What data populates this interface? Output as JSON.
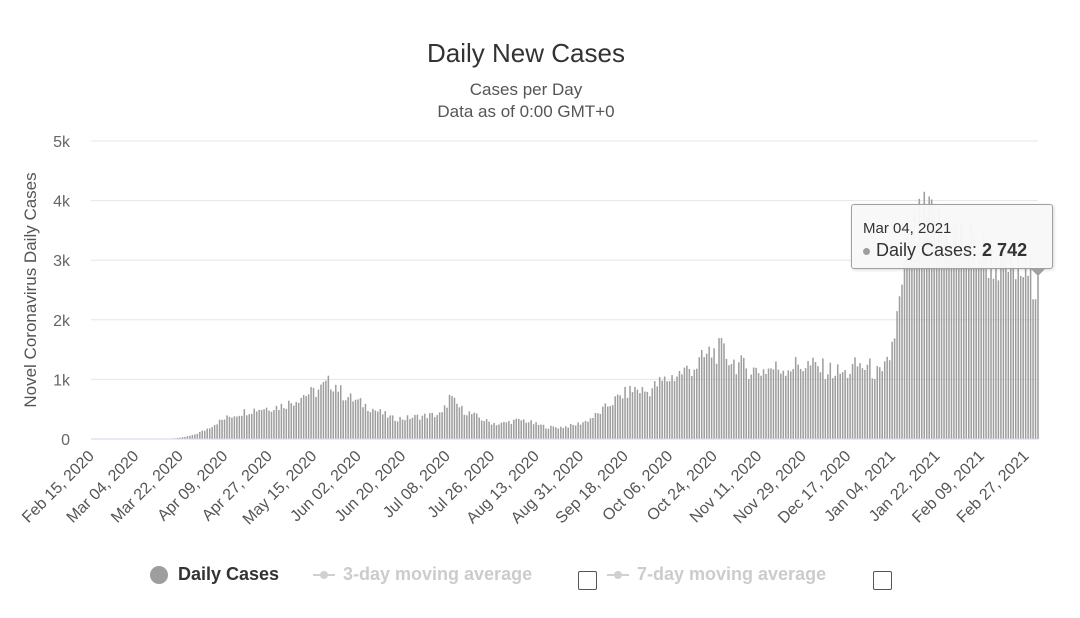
{
  "chart_data": {
    "type": "bar",
    "title": "Daily New Cases",
    "subtitle_lines": [
      "Cases per Day",
      "Data as of 0:00 GMT+0"
    ],
    "ylabel": "Novel Coronavirus Daily Cases",
    "xlabel": "",
    "ylim": [
      0,
      5000
    ],
    "y_ticks": [
      0,
      1000,
      2000,
      3000,
      4000,
      5000
    ],
    "y_tick_labels": [
      "0",
      "1k",
      "2k",
      "3k",
      "4k",
      "5k"
    ],
    "x_range": [
      "2020-02-15",
      "2021-03-04"
    ],
    "x_tick_labels": [
      "Feb 15, 2020",
      "Mar 04, 2020",
      "Mar 22, 2020",
      "Apr 09, 2020",
      "Apr 27, 2020",
      "May 15, 2020",
      "Jun 02, 2020",
      "Jun 20, 2020",
      "Jul 08, 2020",
      "Jul 26, 2020",
      "Aug 13, 2020",
      "Aug 31, 2020",
      "Sep 18, 2020",
      "Oct 06, 2020",
      "Oct 24, 2020",
      "Nov 11, 2020",
      "Nov 29, 2020",
      "Dec 17, 2020",
      "Jan 04, 2021",
      "Jan 22, 2021",
      "Feb 09, 2021",
      "Feb 27, 2021"
    ],
    "grid": true,
    "bar_color": "#9e9e9e",
    "series": [
      {
        "name": "Daily Cases",
        "x": [
          "2020-02-15",
          "2020-02-22",
          "2020-03-01",
          "2020-03-08",
          "2020-03-15",
          "2020-03-22",
          "2020-03-27",
          "2020-04-01",
          "2020-04-06",
          "2020-04-11",
          "2020-04-16",
          "2020-04-21",
          "2020-04-26",
          "2020-05-01",
          "2020-05-06",
          "2020-05-11",
          "2020-05-16",
          "2020-05-21",
          "2020-05-24",
          "2020-05-27",
          "2020-06-01",
          "2020-06-06",
          "2020-06-11",
          "2020-06-16",
          "2020-06-21",
          "2020-06-26",
          "2020-07-01",
          "2020-07-06",
          "2020-07-09",
          "2020-07-14",
          "2020-07-19",
          "2020-07-24",
          "2020-07-29",
          "2020-08-03",
          "2020-08-08",
          "2020-08-13",
          "2020-08-18",
          "2020-08-23",
          "2020-08-28",
          "2020-09-02",
          "2020-09-07",
          "2020-09-12",
          "2020-09-17",
          "2020-09-22",
          "2020-09-27",
          "2020-10-02",
          "2020-10-07",
          "2020-10-12",
          "2020-10-17",
          "2020-10-22",
          "2020-10-27",
          "2020-11-01",
          "2020-11-06",
          "2020-11-11",
          "2020-11-16",
          "2020-11-21",
          "2020-11-26",
          "2020-12-01",
          "2020-12-06",
          "2020-12-11",
          "2020-12-16",
          "2020-12-21",
          "2020-12-26",
          "2020-12-31",
          "2021-01-03",
          "2021-01-05",
          "2021-01-08",
          "2021-01-13",
          "2021-01-18",
          "2021-01-23",
          "2021-01-28",
          "2021-02-02",
          "2021-02-07",
          "2021-02-12",
          "2021-02-17",
          "2021-02-22",
          "2021-02-27",
          "2021-03-04"
        ],
        "values": [
          0,
          0,
          0,
          0,
          0,
          20,
          60,
          150,
          280,
          380,
          450,
          500,
          530,
          550,
          620,
          750,
          800,
          950,
          920,
          750,
          650,
          550,
          450,
          350,
          350,
          380,
          400,
          420,
          700,
          500,
          400,
          300,
          250,
          300,
          320,
          250,
          200,
          200,
          230,
          300,
          420,
          600,
          750,
          850,
          800,
          950,
          1050,
          1150,
          1250,
          1450,
          1500,
          1300,
          1200,
          1150,
          1200,
          1200,
          1250,
          1250,
          1200,
          1150,
          1100,
          1250,
          1200,
          1050,
          1400,
          1800,
          2500,
          3500,
          3700,
          3600,
          3500,
          3350,
          3200,
          3100,
          3000,
          2900,
          2800,
          2742
        ]
      }
    ],
    "tooltip": {
      "date": "Mar 04, 2021",
      "series": "Daily Cases",
      "value_label": "2 742"
    }
  },
  "legend": {
    "daily": "Daily Cases",
    "ma3": "3-day moving average",
    "ma7": "7-day moving average"
  }
}
